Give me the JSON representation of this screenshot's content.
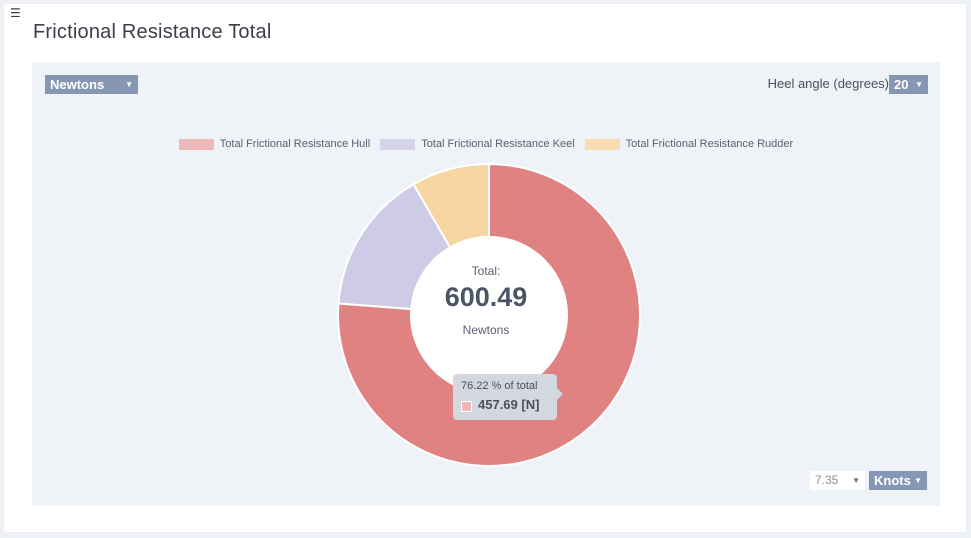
{
  "page": {
    "menu_icon": "hamburger-menu-icon",
    "title": "Frictional Resistance Total"
  },
  "controls": {
    "unit_select": "Newtons",
    "heel_label": "Heel angle (degrees)",
    "heel_value": "20",
    "speed_value": "7.35",
    "speed_unit": "Knots",
    "caret_glyph": "▼"
  },
  "center": {
    "label": "Total:",
    "value": "600.49",
    "unit": "Newtons"
  },
  "tooltip": {
    "percent": "76.22 % of total",
    "value": "457.69 [N]"
  },
  "chart_data": {
    "type": "pie",
    "variant": "doughnut",
    "title": "",
    "total": 600.49,
    "unit": "Newtons",
    "legend_position": "top",
    "categories": [
      "Total Frictional Resistance Hull",
      "Total Frictional Resistance Keel",
      "Total Frictional Resistance Rudder"
    ],
    "values": [
      457.69,
      92.8,
      50.0
    ],
    "colors": [
      "#e18282",
      "#cecbe7",
      "#f5d6a0"
    ],
    "legend_colors": [
      "#efb8b8",
      "#d5d3ea",
      "#f8ddb0"
    ]
  }
}
